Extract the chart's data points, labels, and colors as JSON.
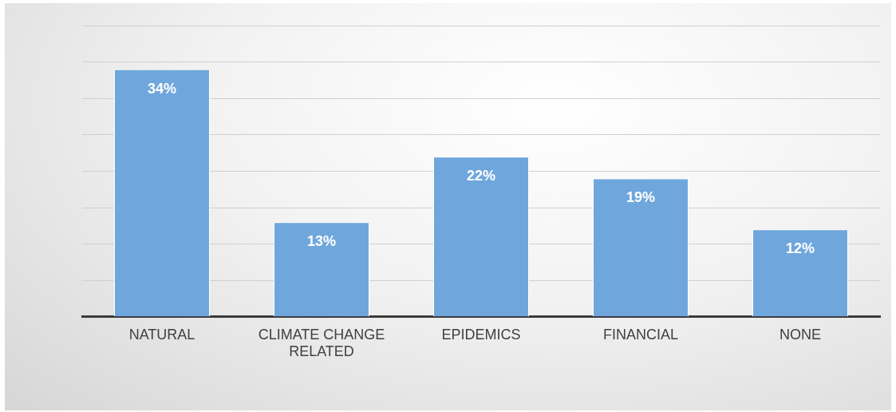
{
  "chart_data": {
    "type": "bar",
    "categories": [
      "NATURAL",
      "CLIMATE CHANGE RELATED",
      "EPIDEMICS",
      "FINANCIAL",
      "NONE"
    ],
    "values": [
      34,
      13,
      22,
      19,
      12
    ],
    "value_labels": [
      "34%",
      "13%",
      "22%",
      "19%",
      "12%"
    ],
    "color": "#6fa7dc",
    "ylim": [
      0,
      40
    ],
    "yticks": [
      {
        "value": 0,
        "label": null
      },
      {
        "value": 5,
        "label": null
      },
      {
        "value": 10,
        "label": null
      },
      {
        "value": 15,
        "label": null
      },
      {
        "value": 20,
        "label": null
      },
      {
        "value": 25,
        "label": null
      },
      {
        "value": 30,
        "label": null
      },
      {
        "value": 35,
        "label": null
      },
      {
        "value": 40,
        "label": null
      }
    ],
    "grid": "y",
    "tick_labels": "x",
    "legend": false
  }
}
